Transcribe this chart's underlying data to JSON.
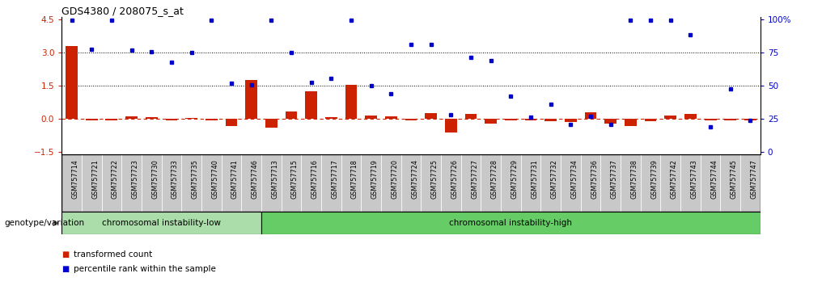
{
  "title": "GDS4380 / 208075_s_at",
  "samples": [
    "GSM757714",
    "GSM757721",
    "GSM757722",
    "GSM757723",
    "GSM757730",
    "GSM757733",
    "GSM757735",
    "GSM757740",
    "GSM757741",
    "GSM757746",
    "GSM757713",
    "GSM757715",
    "GSM757716",
    "GSM757717",
    "GSM757718",
    "GSM757719",
    "GSM757720",
    "GSM757724",
    "GSM757725",
    "GSM757726",
    "GSM757727",
    "GSM757728",
    "GSM757729",
    "GSM757731",
    "GSM757732",
    "GSM757734",
    "GSM757736",
    "GSM757737",
    "GSM757738",
    "GSM757739",
    "GSM757742",
    "GSM757743",
    "GSM757744",
    "GSM757745",
    "GSM757747"
  ],
  "bar_values": [
    3.3,
    -0.05,
    -0.05,
    0.12,
    0.1,
    -0.05,
    0.05,
    -0.05,
    -0.3,
    1.75,
    -0.4,
    0.35,
    1.25,
    0.1,
    1.55,
    0.15,
    0.12,
    -0.05,
    0.28,
    -0.6,
    0.24,
    -0.2,
    -0.05,
    -0.05,
    -0.1,
    -0.15,
    0.3,
    -0.2,
    -0.3,
    -0.1,
    0.17,
    0.22,
    -0.05,
    -0.05,
    -0.05
  ],
  "dot_values": [
    4.45,
    3.15,
    4.45,
    3.1,
    3.05,
    2.55,
    3.0,
    4.45,
    1.6,
    1.55,
    4.45,
    3.0,
    1.65,
    1.85,
    4.45,
    1.5,
    1.15,
    3.35,
    3.35,
    0.2,
    2.8,
    2.65,
    1.05,
    0.1,
    0.65,
    -0.25,
    0.12,
    -0.25,
    4.45,
    4.45,
    4.45,
    3.8,
    -0.35,
    1.35,
    -0.05
  ],
  "group_boundary": 10,
  "group1_label": "chromosomal instability-low",
  "group2_label": "chromosomal instability-high",
  "group1_color": "#aaddaa",
  "group2_color": "#66cc66",
  "genotype_label": "genotype/variation",
  "ylim": [
    -1.6,
    4.6
  ],
  "yticks_left": [
    -1.5,
    0.0,
    1.5,
    3.0,
    4.5
  ],
  "yticks_right_vals": [
    "0",
    "25",
    "50",
    "75",
    "100%"
  ],
  "yticks_right_pos": [
    -1.5,
    0.0,
    1.5,
    3.0,
    4.5
  ],
  "hline1": 3.0,
  "hline2": 1.5,
  "hline0": 0.0,
  "bar_color": "#CC2200",
  "dot_color": "#0000CC",
  "tick_bg_color": "#CCCCCC",
  "bg_color": "#FFFFFF"
}
